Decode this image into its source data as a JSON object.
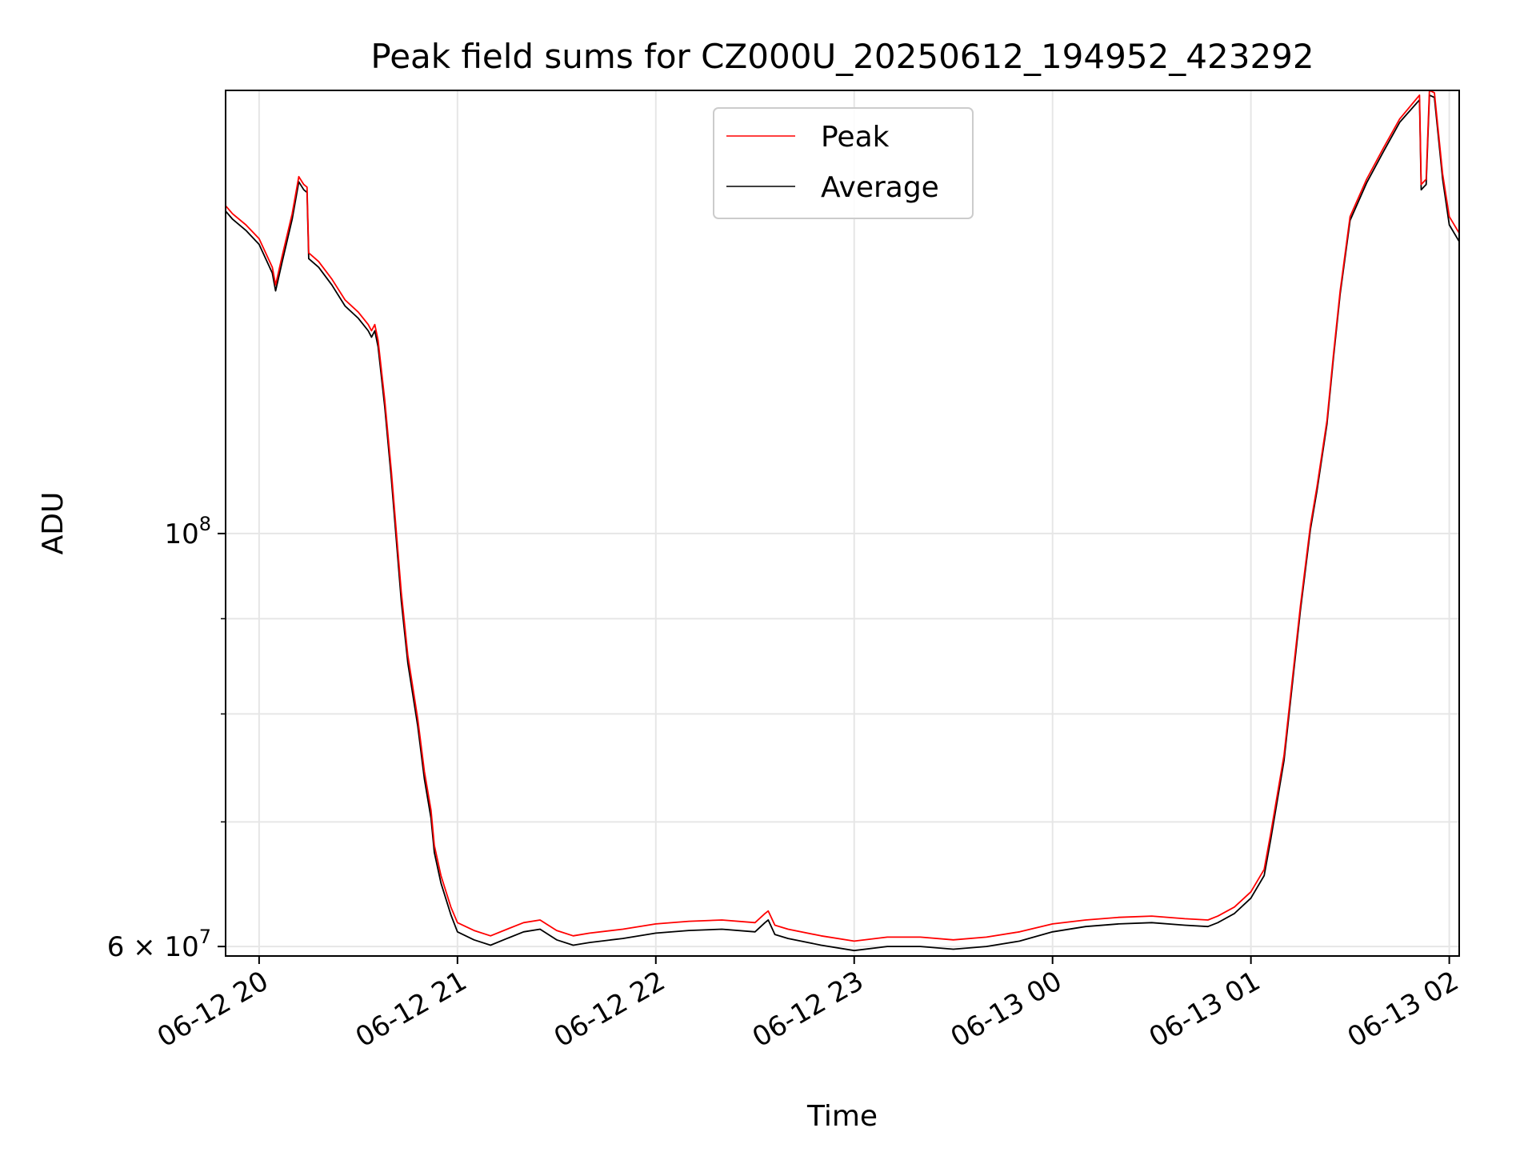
{
  "chart_data": {
    "type": "line",
    "title": "Peak field sums for CZ000U_20250612_194952_423292",
    "xlabel": "Time",
    "ylabel": "ADU",
    "y_scale": "log",
    "ylim": [
      59300000,
      173000000
    ],
    "xlim": [
      "2025-06-12 19:49:52",
      "2025-06-13 02:03:00"
    ],
    "grid": true,
    "legend_position": "top-center",
    "x_ticks": [
      {
        "t": "2025-06-12 20:00",
        "label": "06-12 20"
      },
      {
        "t": "2025-06-12 21:00",
        "label": "06-12 21"
      },
      {
        "t": "2025-06-12 22:00",
        "label": "06-12 22"
      },
      {
        "t": "2025-06-12 23:00",
        "label": "06-12 23"
      },
      {
        "t": "2025-06-13 00:00",
        "label": "06-13 00"
      },
      {
        "t": "2025-06-13 01:00",
        "label": "06-13 01"
      },
      {
        "t": "2025-06-13 02:00",
        "label": "06-13 02"
      }
    ],
    "y_major_ticks": [
      {
        "value": 100000000,
        "base": "10",
        "exp": "8"
      },
      {
        "value": 60000000,
        "base": "6 × 10",
        "exp": "7"
      }
    ],
    "y_minor_ticks": [
      70000000,
      80000000,
      90000000
    ],
    "series": [
      {
        "name": "Peak",
        "color": "#ff0000",
        "points": [
          [
            "2025-06-12 19:49:52",
            150000000
          ],
          [
            "2025-06-12 19:52:00",
            148500000
          ],
          [
            "2025-06-12 19:56:00",
            146500000
          ],
          [
            "2025-06-12 20:00:00",
            144000000
          ],
          [
            "2025-06-12 20:04:00",
            139000000
          ],
          [
            "2025-06-12 20:05:00",
            136000000
          ],
          [
            "2025-06-12 20:07:00",
            141000000
          ],
          [
            "2025-06-12 20:10:00",
            148500000
          ],
          [
            "2025-06-12 20:12:00",
            155500000
          ],
          [
            "2025-06-12 20:13:30",
            154000000
          ],
          [
            "2025-06-12 20:14:30",
            153500000
          ],
          [
            "2025-06-12 20:15:00",
            141500000
          ],
          [
            "2025-06-12 20:18:00",
            140000000
          ],
          [
            "2025-06-12 20:22:00",
            137000000
          ],
          [
            "2025-06-12 20:26:00",
            133500000
          ],
          [
            "2025-06-12 20:30:00",
            131500000
          ],
          [
            "2025-06-12 20:33:00",
            129500000
          ],
          [
            "2025-06-12 20:34:00",
            128500000
          ],
          [
            "2025-06-12 20:35:00",
            129500000
          ],
          [
            "2025-06-12 20:36:00",
            127000000
          ],
          [
            "2025-06-12 20:38:00",
            118000000
          ],
          [
            "2025-06-12 20:40:00",
            108000000
          ],
          [
            "2025-06-12 20:43:00",
            93000000
          ],
          [
            "2025-06-12 20:45:00",
            86000000
          ],
          [
            "2025-06-12 20:48:00",
            79500000
          ],
          [
            "2025-06-12 20:50:00",
            74500000
          ],
          [
            "2025-06-12 20:52:00",
            71000000
          ],
          [
            "2025-06-12 20:53:00",
            68000000
          ],
          [
            "2025-06-12 20:55:00",
            65500000
          ],
          [
            "2025-06-12 20:58:00",
            63000000
          ],
          [
            "2025-06-12 21:00:00",
            61800000
          ],
          [
            "2025-06-12 21:05:00",
            61200000
          ],
          [
            "2025-06-12 21:10:00",
            60800000
          ],
          [
            "2025-06-12 21:15:00",
            61300000
          ],
          [
            "2025-06-12 21:20:00",
            61800000
          ],
          [
            "2025-06-12 21:25:00",
            62000000
          ],
          [
            "2025-06-12 21:30:00",
            61200000
          ],
          [
            "2025-06-12 21:35:00",
            60800000
          ],
          [
            "2025-06-12 21:40:00",
            61000000
          ],
          [
            "2025-06-12 21:50:00",
            61300000
          ],
          [
            "2025-06-12 22:00:00",
            61700000
          ],
          [
            "2025-06-12 22:10:00",
            61900000
          ],
          [
            "2025-06-12 22:20:00",
            62000000
          ],
          [
            "2025-06-12 22:30:00",
            61800000
          ],
          [
            "2025-06-12 22:33:00",
            62500000
          ],
          [
            "2025-06-12 22:34:00",
            62700000
          ],
          [
            "2025-06-12 22:36:00",
            61600000
          ],
          [
            "2025-06-12 22:40:00",
            61300000
          ],
          [
            "2025-06-12 22:50:00",
            60800000
          ],
          [
            "2025-06-12 23:00:00",
            60400000
          ],
          [
            "2025-06-12 23:10:00",
            60700000
          ],
          [
            "2025-06-12 23:20:00",
            60700000
          ],
          [
            "2025-06-12 23:30:00",
            60500000
          ],
          [
            "2025-06-12 23:40:00",
            60700000
          ],
          [
            "2025-06-12 23:50:00",
            61100000
          ],
          [
            "2025-06-13 00:00:00",
            61700000
          ],
          [
            "2025-06-13 00:10:00",
            62000000
          ],
          [
            "2025-06-13 00:20:00",
            62200000
          ],
          [
            "2025-06-13 00:30:00",
            62300000
          ],
          [
            "2025-06-13 00:40:00",
            62100000
          ],
          [
            "2025-06-13 00:47:00",
            62000000
          ],
          [
            "2025-06-13 00:50:00",
            62300000
          ],
          [
            "2025-06-13 00:55:00",
            63000000
          ],
          [
            "2025-06-13 01:00:00",
            64200000
          ],
          [
            "2025-06-13 01:04:00",
            66000000
          ],
          [
            "2025-06-13 01:06:00",
            69000000
          ],
          [
            "2025-06-13 01:10:00",
            76000000
          ],
          [
            "2025-06-13 01:13:00",
            85000000
          ],
          [
            "2025-06-13 01:15:00",
            91500000
          ],
          [
            "2025-06-13 01:18:00",
            101000000
          ],
          [
            "2025-06-13 01:20:00",
            106000000
          ],
          [
            "2025-06-13 01:23:00",
            115000000
          ],
          [
            "2025-06-13 01:25:00",
            125000000
          ],
          [
            "2025-06-13 01:27:00",
            135000000
          ],
          [
            "2025-06-13 01:30:00",
            148000000
          ],
          [
            "2025-06-13 01:35:00",
            155000000
          ],
          [
            "2025-06-13 01:40:00",
            161000000
          ],
          [
            "2025-06-13 01:45:00",
            167000000
          ],
          [
            "2025-06-13 01:51:00",
            172000000
          ],
          [
            "2025-06-13 01:51:30",
            154000000
          ],
          [
            "2025-06-13 01:53:00",
            155000000
          ],
          [
            "2025-06-13 01:54:00",
            173000000
          ],
          [
            "2025-06-13 01:55:30",
            172500000
          ],
          [
            "2025-06-13 01:58:00",
            156000000
          ],
          [
            "2025-06-13 02:00:00",
            148000000
          ],
          [
            "2025-06-13 02:03:00",
            145000000
          ]
        ]
      },
      {
        "name": "Average",
        "color": "#000000",
        "points": [
          [
            "2025-06-12 19:49:52",
            149000000
          ],
          [
            "2025-06-12 19:52:00",
            147500000
          ],
          [
            "2025-06-12 19:56:00",
            145500000
          ],
          [
            "2025-06-12 20:00:00",
            143000000
          ],
          [
            "2025-06-12 20:04:00",
            138000000
          ],
          [
            "2025-06-12 20:05:00",
            135000000
          ],
          [
            "2025-06-12 20:07:00",
            140000000
          ],
          [
            "2025-06-12 20:10:00",
            147500000
          ],
          [
            "2025-06-12 20:12:00",
            154500000
          ],
          [
            "2025-06-12 20:13:30",
            153000000
          ],
          [
            "2025-06-12 20:14:30",
            152500000
          ],
          [
            "2025-06-12 20:15:00",
            140500000
          ],
          [
            "2025-06-12 20:18:00",
            139000000
          ],
          [
            "2025-06-12 20:22:00",
            136000000
          ],
          [
            "2025-06-12 20:26:00",
            132500000
          ],
          [
            "2025-06-12 20:30:00",
            130500000
          ],
          [
            "2025-06-12 20:33:00",
            128500000
          ],
          [
            "2025-06-12 20:34:00",
            127500000
          ],
          [
            "2025-06-12 20:35:00",
            128500000
          ],
          [
            "2025-06-12 20:36:00",
            126000000
          ],
          [
            "2025-06-12 20:38:00",
            117000000
          ],
          [
            "2025-06-12 20:40:00",
            107000000
          ],
          [
            "2025-06-12 20:43:00",
            92000000
          ],
          [
            "2025-06-12 20:45:00",
            85200000
          ],
          [
            "2025-06-12 20:48:00",
            78800000
          ],
          [
            "2025-06-12 20:50:00",
            73800000
          ],
          [
            "2025-06-12 20:52:00",
            70300000
          ],
          [
            "2025-06-12 20:53:00",
            67400000
          ],
          [
            "2025-06-12 20:55:00",
            64900000
          ],
          [
            "2025-06-12 20:58:00",
            62400000
          ],
          [
            "2025-06-12 21:00:00",
            61100000
          ],
          [
            "2025-06-12 21:05:00",
            60500000
          ],
          [
            "2025-06-12 21:10:00",
            60100000
          ],
          [
            "2025-06-12 21:15:00",
            60600000
          ],
          [
            "2025-06-12 21:20:00",
            61100000
          ],
          [
            "2025-06-12 21:25:00",
            61300000
          ],
          [
            "2025-06-12 21:30:00",
            60500000
          ],
          [
            "2025-06-12 21:35:00",
            60100000
          ],
          [
            "2025-06-12 21:40:00",
            60300000
          ],
          [
            "2025-06-12 21:50:00",
            60600000
          ],
          [
            "2025-06-12 22:00:00",
            61000000
          ],
          [
            "2025-06-12 22:10:00",
            61200000
          ],
          [
            "2025-06-12 22:20:00",
            61300000
          ],
          [
            "2025-06-12 22:30:00",
            61100000
          ],
          [
            "2025-06-12 22:33:00",
            61800000
          ],
          [
            "2025-06-12 22:34:00",
            62000000
          ],
          [
            "2025-06-12 22:36:00",
            60900000
          ],
          [
            "2025-06-12 22:40:00",
            60600000
          ],
          [
            "2025-06-12 22:50:00",
            60100000
          ],
          [
            "2025-06-12 23:00:00",
            59700000
          ],
          [
            "2025-06-12 23:10:00",
            60000000
          ],
          [
            "2025-06-12 23:20:00",
            60000000
          ],
          [
            "2025-06-12 23:30:00",
            59800000
          ],
          [
            "2025-06-12 23:40:00",
            60000000
          ],
          [
            "2025-06-12 23:50:00",
            60400000
          ],
          [
            "2025-06-13 00:00:00",
            61100000
          ],
          [
            "2025-06-13 00:10:00",
            61500000
          ],
          [
            "2025-06-13 00:20:00",
            61700000
          ],
          [
            "2025-06-13 00:30:00",
            61800000
          ],
          [
            "2025-06-13 00:40:00",
            61600000
          ],
          [
            "2025-06-13 00:47:00",
            61500000
          ],
          [
            "2025-06-13 00:50:00",
            61800000
          ],
          [
            "2025-06-13 00:55:00",
            62500000
          ],
          [
            "2025-06-13 01:00:00",
            63700000
          ],
          [
            "2025-06-13 01:04:00",
            65500000
          ],
          [
            "2025-06-13 01:06:00",
            68500000
          ],
          [
            "2025-06-13 01:10:00",
            75500000
          ],
          [
            "2025-06-13 01:13:00",
            84500000
          ],
          [
            "2025-06-13 01:15:00",
            91000000
          ],
          [
            "2025-06-13 01:18:00",
            100500000
          ],
          [
            "2025-06-13 01:20:00",
            105500000
          ],
          [
            "2025-06-13 01:23:00",
            114500000
          ],
          [
            "2025-06-13 01:25:00",
            124500000
          ],
          [
            "2025-06-13 01:27:00",
            134500000
          ],
          [
            "2025-06-13 01:30:00",
            147300000
          ],
          [
            "2025-06-13 01:35:00",
            154300000
          ],
          [
            "2025-06-13 01:40:00",
            160300000
          ],
          [
            "2025-06-13 01:45:00",
            166300000
          ],
          [
            "2025-06-13 01:51:00",
            171000000
          ],
          [
            "2025-06-13 01:51:30",
            153000000
          ],
          [
            "2025-06-13 01:53:00",
            154000000
          ],
          [
            "2025-06-13 01:54:00",
            172000000
          ],
          [
            "2025-06-13 01:55:30",
            171500000
          ],
          [
            "2025-06-13 01:58:00",
            155000000
          ],
          [
            "2025-06-13 02:00:00",
            146500000
          ],
          [
            "2025-06-13 02:03:00",
            143500000
          ]
        ]
      }
    ]
  }
}
